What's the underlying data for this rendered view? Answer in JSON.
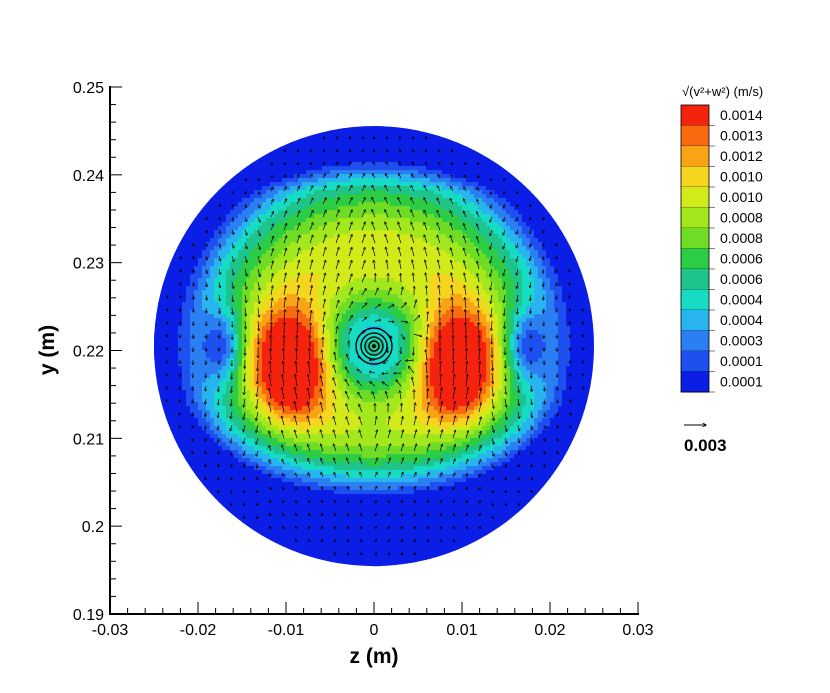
{
  "chart_data": {
    "type": "heatmap",
    "xlabel": "z  (m)",
    "ylabel": "y  (m)",
    "xlim": [
      -0.03,
      0.03
    ],
    "ylim": [
      0.19,
      0.25
    ],
    "x_ticks": [
      "-0.03",
      "-0.02",
      "-0.01",
      "0",
      "0.01",
      "0.02",
      "0.03"
    ],
    "y_ticks": [
      "0.19",
      "0.2",
      "0.21",
      "0.22",
      "0.23",
      "0.24",
      "0.25"
    ],
    "domain": {
      "shape": "circle",
      "center_z": 0.0,
      "center_y": 0.2205,
      "radius": 0.025
    },
    "vortex_center": {
      "z": 0.0,
      "y": 0.2205
    },
    "hotspots": [
      {
        "z": -0.0095,
        "y": 0.2185,
        "value": 0.0014
      },
      {
        "z": 0.0095,
        "y": 0.2185,
        "value": 0.0014
      }
    ],
    "legend": {
      "title": "√(v²+w²)  (m/s)",
      "levels": [
        "0.0014",
        "0.0013",
        "0.0012",
        "0.0010",
        "0.0010",
        "0.0008",
        "0.0008",
        "0.0006",
        "0.0006",
        "0.0004",
        "0.0004",
        "0.0003",
        "0.0001",
        "0.0001"
      ],
      "colors": [
        "#f5220e",
        "#f86a10",
        "#fba317",
        "#f6d51f",
        "#d2ea1a",
        "#a2e81c",
        "#6fdc26",
        "#2ccc45",
        "#1ec489",
        "#16dcc6",
        "#28b4ee",
        "#2a7ff3",
        "#1e50f0",
        "#0a1ee6"
      ]
    },
    "vector_reference": {
      "label": "0.003"
    }
  }
}
